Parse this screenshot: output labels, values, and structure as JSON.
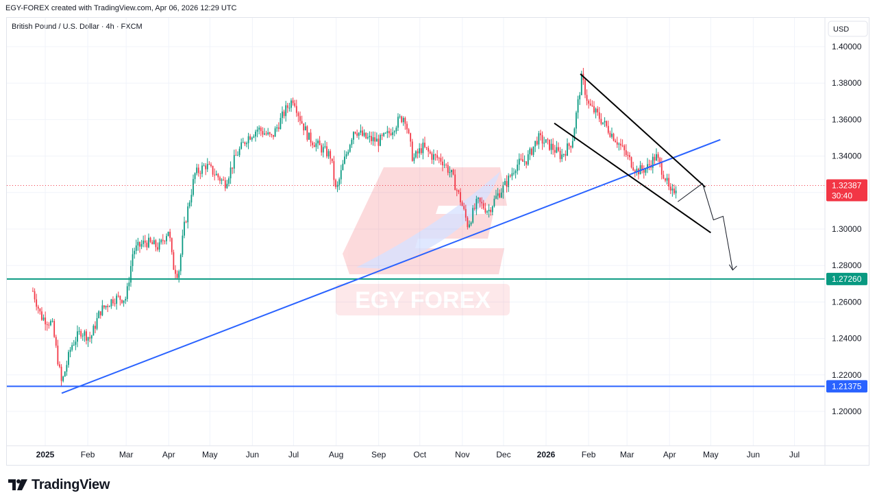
{
  "header": {
    "created": "EGY-FOREX created with TradingView.com, Apr 06, 2026 12:29 UTC",
    "symbol": "British Pound / U.S. Dollar · 4h · FXCM"
  },
  "watermark": {
    "text": "EGY FOREX"
  },
  "footer": {
    "brand": "TradingView"
  },
  "chart_data": {
    "type": "candlestick",
    "currency": "USD",
    "xlabels": [
      "2025",
      "Feb",
      "Mar",
      "Apr",
      "May",
      "Jun",
      "Jul",
      "Aug",
      "Sep",
      "Oct",
      "Nov",
      "Dec",
      "2026",
      "Feb",
      "Mar",
      "Apr",
      "May",
      "Jun",
      "Jul"
    ],
    "yticks": [
      "1.40000",
      "1.38000",
      "1.36000",
      "1.34000",
      "1.32000",
      "1.30000",
      "1.28000",
      "1.26000",
      "1.24000",
      "1.22000",
      "1.20000"
    ],
    "ylim": [
      1.18,
      1.41
    ],
    "price_path": [
      [
        "2024-12-23",
        1.266
      ],
      [
        "2024-12-29",
        1.252
      ],
      [
        "2025-01-06",
        1.248
      ],
      [
        "2025-01-13",
        1.215
      ],
      [
        "2025-01-20",
        1.236
      ],
      [
        "2025-01-27",
        1.244
      ],
      [
        "2025-02-03",
        1.24
      ],
      [
        "2025-02-10",
        1.255
      ],
      [
        "2025-02-20",
        1.262
      ],
      [
        "2025-03-01",
        1.262
      ],
      [
        "2025-03-06",
        1.288
      ],
      [
        "2025-03-15",
        1.293
      ],
      [
        "2025-03-25",
        1.29
      ],
      [
        "2025-04-01",
        1.3
      ],
      [
        "2025-04-04",
        1.28
      ],
      [
        "2025-04-08",
        1.275
      ],
      [
        "2025-04-12",
        1.3
      ],
      [
        "2025-04-20",
        1.33
      ],
      [
        "2025-04-28",
        1.335
      ],
      [
        "2025-05-05",
        1.33
      ],
      [
        "2025-05-12",
        1.325
      ],
      [
        "2025-05-20",
        1.34
      ],
      [
        "2025-05-28",
        1.35
      ],
      [
        "2025-06-05",
        1.355
      ],
      [
        "2025-06-15",
        1.35
      ],
      [
        "2025-06-25",
        1.365
      ],
      [
        "2025-07-01",
        1.372
      ],
      [
        "2025-07-05",
        1.362
      ],
      [
        "2025-07-12",
        1.35
      ],
      [
        "2025-07-20",
        1.345
      ],
      [
        "2025-07-28",
        1.34
      ],
      [
        "2025-08-01",
        1.32
      ],
      [
        "2025-08-06",
        1.335
      ],
      [
        "2025-08-14",
        1.355
      ],
      [
        "2025-08-22",
        1.35
      ],
      [
        "2025-09-01",
        1.348
      ],
      [
        "2025-09-08",
        1.352
      ],
      [
        "2025-09-16",
        1.36
      ],
      [
        "2025-09-20",
        1.362
      ],
      [
        "2025-09-26",
        1.338
      ],
      [
        "2025-10-03",
        1.345
      ],
      [
        "2025-10-10",
        1.34
      ],
      [
        "2025-10-17",
        1.338
      ],
      [
        "2025-10-24",
        1.33
      ],
      [
        "2025-10-31",
        1.315
      ],
      [
        "2025-11-05",
        1.302
      ],
      [
        "2025-11-12",
        1.315
      ],
      [
        "2025-11-20",
        1.31
      ],
      [
        "2025-11-26",
        1.318
      ],
      [
        "2025-12-03",
        1.325
      ],
      [
        "2025-12-10",
        1.335
      ],
      [
        "2025-12-18",
        1.338
      ],
      [
        "2025-12-26",
        1.35
      ],
      [
        "2026-01-05",
        1.345
      ],
      [
        "2026-01-12",
        1.34
      ],
      [
        "2026-01-20",
        1.348
      ],
      [
        "2026-01-27",
        1.383
      ],
      [
        "2026-02-01",
        1.368
      ],
      [
        "2026-02-08",
        1.362
      ],
      [
        "2026-02-15",
        1.355
      ],
      [
        "2026-02-22",
        1.348
      ],
      [
        "2026-03-01",
        1.34
      ],
      [
        "2026-03-08",
        1.332
      ],
      [
        "2026-03-15",
        1.333
      ],
      [
        "2026-03-22",
        1.34
      ],
      [
        "2026-03-29",
        1.328
      ],
      [
        "2026-04-02",
        1.318
      ],
      [
        "2026-04-06",
        1.3239
      ]
    ],
    "lines": {
      "uptrend": {
        "color": "#2962ff",
        "from": [
          "2025-01-13",
          1.21
        ],
        "to": [
          "2026-05-08",
          1.349
        ]
      },
      "channel_upper": {
        "color": "#000000",
        "from": [
          "2026-01-26",
          1.385
        ],
        "to": [
          "2026-04-27",
          1.323
        ]
      },
      "channel_lower": {
        "color": "#000000",
        "from": [
          "2026-01-07",
          1.358
        ],
        "to": [
          "2026-05-01",
          1.298
        ]
      },
      "projection": {
        "color": "#131722",
        "points": [
          [
            "2026-04-07",
            1.315
          ],
          [
            "2026-04-25",
            1.325
          ],
          [
            "2026-05-03",
            1.305
          ],
          [
            "2026-05-10",
            1.307
          ],
          [
            "2026-05-17",
            1.2775
          ]
        ]
      }
    },
    "levels": [
      {
        "price": 1.2726,
        "label": "1.27260",
        "color": "#089981"
      },
      {
        "price": 1.21375,
        "label": "1.21375",
        "color": "#2962ff"
      }
    ],
    "current": {
      "price": 1.32387,
      "label": "1.32387",
      "countdown": "30:40",
      "color": "#f23645"
    },
    "colors": {
      "up": "#089981",
      "down": "#f23645",
      "grid": "#f0f3fa",
      "axis_text": "#131722"
    }
  }
}
